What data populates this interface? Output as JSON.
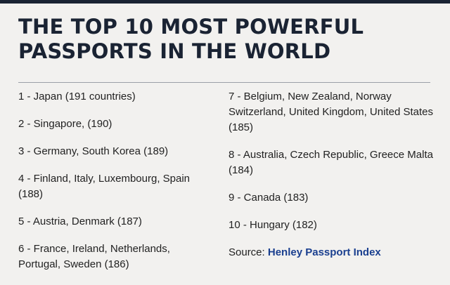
{
  "title": {
    "line1": "THE TOP 10 MOST POWERFUL",
    "line2": "PASSPORTS IN THE WORLD"
  },
  "rankings_left": [
    "1 - Japan (191 countries)",
    "2 - Singapore, (190)",
    "3 - Germany, South Korea (189)",
    "4 - Finland, Italy, Luxembourg, Spain (188)",
    "5 - Austria, Denmark (187)",
    "6 - France, Ireland, Netherlands, Portugal, Sweden (186)"
  ],
  "rankings_right": [
    "7 - Belgium, New Zealand, Norway Switzerland, United Kingdom, United States (185)",
    "8 - Australia, Czech Republic, Greece Malta (184)",
    "9 - Canada (183)",
    "10 - Hungary (182)"
  ],
  "source": {
    "label": "Source:",
    "link_text": "Henley Passport Index"
  },
  "colors": {
    "title": "#1a2333",
    "link": "#1a3f8f",
    "background": "#f2f1ef"
  }
}
